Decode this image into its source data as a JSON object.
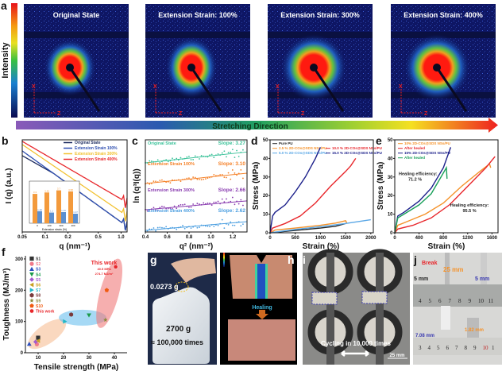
{
  "panel_labels": {
    "a": "a",
    "b": "b",
    "c": "c",
    "d": "d",
    "e": "e",
    "f": "f",
    "g": "g",
    "h": "h",
    "i": "i",
    "j": "j"
  },
  "panel_a": {
    "colorbar_label": "Intensity",
    "images": [
      {
        "title": "Original State"
      },
      {
        "title": "Extension Strain: 100%"
      },
      {
        "title": "Extension Strain: 300%"
      },
      {
        "title": "Extension Strain: 400%"
      }
    ],
    "axis_x": "X",
    "axis_z": "Z",
    "arrow_label": "Stretching Direction"
  },
  "chart_data": [
    {
      "id": "b",
      "type": "line",
      "xlabel": "q (nm⁻¹)",
      "ylabel": "I (q) (a.u.)",
      "xscale": "log",
      "xlim": [
        0.05,
        1.2
      ],
      "xticks": [
        "0.05",
        "0.1",
        "0.2",
        "0.5",
        "1.0"
      ],
      "xtick_values": [
        0.05,
        0.1,
        0.2,
        0.5,
        1.0
      ],
      "legend_position": "top-right",
      "series": [
        {
          "name": "Original State",
          "color": "#1b2a5e"
        },
        {
          "name": "Extension Strain 100%",
          "color": "#2f4fb0"
        },
        {
          "name": "Extension Strain 300%",
          "color": "#f2c12e"
        },
        {
          "name": "Extension Strain 400%",
          "color": "#e8262b"
        }
      ],
      "inset": {
        "type": "bar",
        "xlabel": "Extension strain (%)",
        "categories": [
          "0",
          "100",
          "300",
          "400"
        ],
        "series": [
          {
            "values": [
              3.3,
              3.46,
              3.7,
              3.58
            ],
            "color": "#f39a3c"
          },
          {
            "values": [
              1.36,
              1.2,
              1.25,
              1.07
            ],
            "color": "#5b8fd0"
          }
        ]
      }
    },
    {
      "id": "c",
      "type": "scatter",
      "xlabel": "q² (nm⁻²)",
      "ylabel": "ln (q³I(q))",
      "xlim": [
        0.4,
        1.33
      ],
      "xticks": [
        "0.4",
        "0.6",
        "0.8",
        "1.0",
        "1.2"
      ],
      "xtick_values": [
        0.4,
        0.6,
        0.8,
        1.0,
        1.2
      ],
      "series": [
        {
          "name": "Original State",
          "slope_label": "Slope: 3.27",
          "slope": 3.27,
          "color": "#3cc29a"
        },
        {
          "name": "Extension Strain 100%",
          "slope_label": "Slope: 3.10",
          "slope": 3.1,
          "color": "#f5822a"
        },
        {
          "name": "Extension Strain 300%",
          "slope_label": "Slope: 2.66",
          "slope": 2.66,
          "color": "#8a3db0"
        },
        {
          "name": "Extension Strain 400%",
          "slope_label": "Slope: 2.62",
          "slope": 2.62,
          "color": "#4a9ee0"
        }
      ]
    },
    {
      "id": "d",
      "type": "line",
      "xlabel": "Strain (%)",
      "ylabel": "Stress (MPa)",
      "xlim": [
        0,
        2050
      ],
      "ylim": [
        0,
        50
      ],
      "xticks": [
        0,
        500,
        1000,
        1500,
        2000
      ],
      "yticks": [
        0,
        10,
        20,
        30,
        40,
        50
      ],
      "legend_position": "top",
      "series": [
        {
          "name": "Pure PU",
          "color": "#222222",
          "points": [
            [
              0,
              0
            ],
            [
              500,
              1.3
            ],
            [
              1000,
              2.5
            ],
            [
              1300,
              3.5
            ],
            [
              1500,
              5
            ]
          ]
        },
        {
          "name": "2.5 % 2D-COs@SDS NSs/PU",
          "color": "#f5922a",
          "points": [
            [
              0,
              0
            ],
            [
              100,
              1.5
            ],
            [
              500,
              2.5
            ],
            [
              1000,
              4
            ],
            [
              1300,
              5.2
            ],
            [
              1500,
              6.5
            ],
            [
              1530,
              5
            ]
          ]
        },
        {
          "name": "5.0 % 2D-COs@SDS NSs/PU",
          "color": "#5aa7e6",
          "points": [
            [
              0,
              0
            ],
            [
              500,
              1.8
            ],
            [
              1000,
              3.3
            ],
            [
              1500,
              5
            ],
            [
              2000,
              7
            ]
          ]
        },
        {
          "name": "10.0 % 2D-COs@SDS NSs/PU",
          "color": "#e8262b",
          "points": [
            [
              0,
              0
            ],
            [
              50,
              2.5
            ],
            [
              300,
              5
            ],
            [
              600,
              9
            ],
            [
              900,
              16
            ],
            [
              1200,
              25
            ],
            [
              1500,
              33
            ],
            [
              1600,
              36
            ],
            [
              1700,
              40
            ]
          ]
        },
        {
          "name": "15.0 % 2D-COs@SDS NSs/PU",
          "color": "#1b1f8a",
          "points": [
            [
              0,
              0
            ],
            [
              50,
              9
            ],
            [
              100,
              11
            ],
            [
              300,
              15
            ],
            [
              500,
              22
            ],
            [
              700,
              30
            ],
            [
              900,
              40
            ],
            [
              1000,
              46
            ]
          ]
        }
      ]
    },
    {
      "id": "e",
      "type": "line",
      "xlabel": "Strain (%)",
      "ylabel": "Stress (MPa)",
      "xlim": [
        0,
        1700
      ],
      "ylim": [
        0,
        50
      ],
      "xticks": [
        0,
        400,
        800,
        1200,
        1600
      ],
      "yticks": [
        0,
        10,
        20,
        30,
        40,
        50
      ],
      "legend_position": "top-left",
      "series": [
        {
          "name": "10% 2D-COs@SDS NSs/PU",
          "color": "#f5922a",
          "points": [
            [
              0,
              0
            ],
            [
              50,
              4
            ],
            [
              200,
              6
            ],
            [
              500,
              10
            ],
            [
              800,
              16
            ],
            [
              1100,
              25
            ],
            [
              1400,
              33
            ],
            [
              1560,
              37
            ],
            [
              1580,
              35
            ]
          ]
        },
        {
          "name": "After healed",
          "color": "#e8262b",
          "points": [
            [
              0,
              0
            ],
            [
              50,
              2
            ],
            [
              300,
              4
            ],
            [
              600,
              8
            ],
            [
              900,
              15
            ],
            [
              1200,
              25
            ],
            [
              1500,
              35
            ],
            [
              1650,
              41
            ]
          ]
        },
        {
          "name": "15% 2D-COs@SDS NSs/PU",
          "color": "#1b1f8a",
          "points": [
            [
              0,
              0
            ],
            [
              50,
              9
            ],
            [
              150,
              11
            ],
            [
              400,
              17
            ],
            [
              600,
              24
            ],
            [
              800,
              35
            ],
            [
              920,
              46
            ]
          ]
        },
        {
          "name": "After healed",
          "color": "#1aa05a",
          "points": [
            [
              0,
              0
            ],
            [
              50,
              8
            ],
            [
              150,
              10
            ],
            [
              400,
              15
            ],
            [
              600,
              21
            ],
            [
              850,
              35
            ],
            [
              860,
              29
            ]
          ]
        }
      ],
      "annotations": [
        {
          "text": "Healing efficiency:",
          "text2": "71.2 %"
        },
        {
          "text": "Healing efficiency:",
          "text2": "95.5 %"
        }
      ]
    },
    {
      "id": "f",
      "type": "scatter",
      "xlabel": "Tensile strength (MPa)",
      "ylabel": "Toughness (MJ/m³)",
      "xlim": [
        5,
        45
      ],
      "ylim": [
        0,
        310
      ],
      "xticks": [
        10,
        20,
        30,
        40
      ],
      "yticks": [
        0,
        100,
        200,
        300
      ],
      "legend_position": "top-left",
      "series": [
        {
          "name": "S1",
          "x": 10,
          "y": 48,
          "color": "#333333",
          "marker": "square"
        },
        {
          "name": "S2",
          "x": 9.5,
          "y": 27,
          "color": "#f07a8a",
          "marker": "circle"
        },
        {
          "name": "S3",
          "x": 6.5,
          "y": 28,
          "color": "#2a4fc0",
          "marker": "triangle-up"
        },
        {
          "name": "S4",
          "x": 30,
          "y": 120,
          "color": "#1a9a4a",
          "marker": "triangle-down"
        },
        {
          "name": "S5",
          "x": 9,
          "y": 35,
          "color": "#a35bd0",
          "marker": "diamond"
        },
        {
          "name": "S6",
          "x": 10,
          "y": 38,
          "color": "#c8a020",
          "marker": "triangle-left"
        },
        {
          "name": "S7",
          "x": 20.5,
          "y": 100,
          "color": "#20b8c8",
          "marker": "triangle-right"
        },
        {
          "name": "S8",
          "x": 23,
          "y": 122,
          "color": "#7a3a3a",
          "marker": "hexagon"
        },
        {
          "name": "S9",
          "x": 36.5,
          "y": 105,
          "color": "#8a8a3a",
          "marker": "star"
        },
        {
          "name": "S10",
          "x": 37,
          "y": 200,
          "color": "#f05a10",
          "marker": "pentagon"
        },
        {
          "name": "This work",
          "x": 40.5,
          "y": 274.7,
          "color": "#e8262b",
          "marker": "circle-half"
        }
      ],
      "annotation": {
        "title": "This work",
        "line1": "40.5 MPa",
        "line2": "274.7 MJ/m³"
      }
    }
  ],
  "panel_g": {
    "mass_small": "0.0273 g",
    "mass_large": "2700 g",
    "cycles": "≈ 100,000 times"
  },
  "panel_h": {
    "label": "Healing"
  },
  "panel_i": {
    "label": "Cycling in 10,000 times",
    "scale": "25 mm"
  },
  "panel_j": {
    "break": "Break",
    "m1": "25 mm",
    "m2": "5 mm",
    "m3": "5 mm",
    "m4": "7.08 mm",
    "m5": "1.82 mm",
    "ruler1": [
      "4",
      "5",
      "6",
      "7",
      "8",
      "9",
      "10",
      "11"
    ],
    "ruler2": [
      "3",
      "4",
      "5",
      "6",
      "7",
      "8",
      "9",
      "10",
      "1"
    ]
  }
}
